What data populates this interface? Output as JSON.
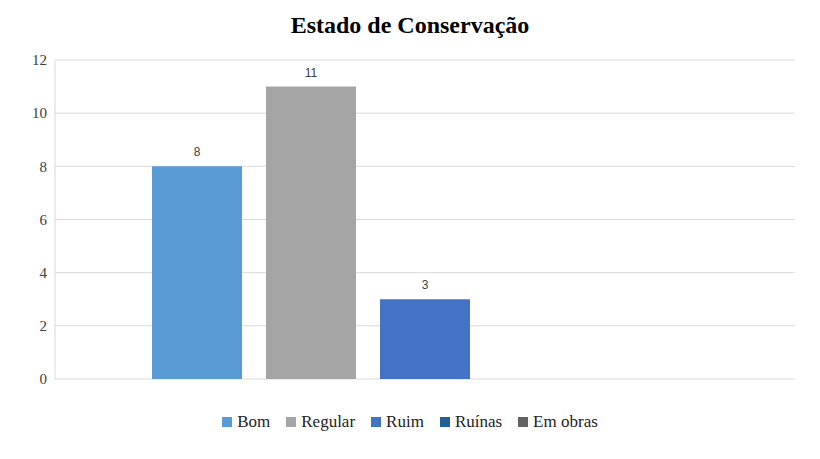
{
  "chart_data": {
    "type": "bar",
    "title": "Estado de Conservação",
    "categories": [
      "Bom",
      "Regular",
      "Ruim",
      "Ruínas",
      "Em obras"
    ],
    "values": [
      8,
      11,
      3,
      0,
      0
    ],
    "colors": [
      "#5b9bd5",
      "#a5a5a5",
      "#4472c4",
      "#255e91",
      "#636363"
    ],
    "ylim": [
      0,
      12
    ],
    "yticks": [
      0,
      2,
      4,
      6,
      8,
      10,
      12
    ],
    "grid": true,
    "data_labels": true,
    "legend": "bottom",
    "tick_labels": "y"
  }
}
